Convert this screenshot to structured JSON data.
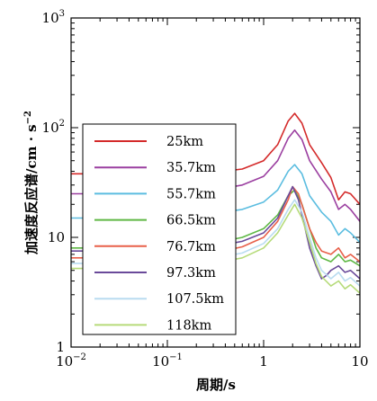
{
  "chart_data": {
    "type": "line",
    "xscale": "log",
    "yscale": "log",
    "xlim": [
      0.01,
      10
    ],
    "ylim": [
      1,
      1000
    ],
    "xlabel": "周期/s",
    "ylabel": "加速度反应谱/cm · s",
    "ylabel_exponent": "−2",
    "x_ticks": [
      {
        "base": "10",
        "exp": "−2"
      },
      {
        "base": "10",
        "exp": "−1"
      },
      {
        "base": "1",
        "exp": ""
      },
      {
        "base": "10",
        "exp": ""
      }
    ],
    "y_ticks": [
      {
        "base": "1",
        "exp": ""
      },
      {
        "base": "10",
        "exp": ""
      },
      {
        "base": "10",
        "exp": "2"
      },
      {
        "base": "10",
        "exp": "3"
      }
    ],
    "legend_position": "left-center",
    "series": [
      {
        "name": "25km",
        "color": "#d42a2a",
        "x": [
          0.01,
          0.03,
          0.1,
          0.3,
          0.6,
          1.0,
          1.4,
          1.8,
          2.1,
          2.5,
          3.0,
          4.0,
          5.0,
          6.0,
          7.0,
          8.0,
          10.0
        ],
        "y": [
          38,
          38,
          38,
          39,
          42,
          50,
          70,
          115,
          135,
          110,
          70,
          48,
          35,
          22,
          26,
          25,
          20
        ]
      },
      {
        "name": "35.7km",
        "color": "#9b3fa0",
        "x": [
          0.01,
          0.03,
          0.1,
          0.3,
          0.6,
          1.0,
          1.4,
          1.8,
          2.1,
          2.5,
          3.0,
          4.0,
          5.0,
          6.0,
          7.0,
          8.0,
          10.0
        ],
        "y": [
          25,
          25,
          25.5,
          27,
          30,
          36,
          50,
          80,
          95,
          78,
          50,
          34,
          26,
          18,
          20,
          18,
          14
        ]
      },
      {
        "name": "55.7km",
        "color": "#5bbde0",
        "x": [
          0.01,
          0.03,
          0.1,
          0.3,
          0.6,
          1.0,
          1.4,
          1.8,
          2.1,
          2.5,
          3.0,
          4.0,
          5.0,
          6.0,
          7.0,
          8.0,
          10.0
        ],
        "y": [
          15,
          15,
          15.5,
          16.5,
          18,
          21,
          27,
          40,
          46,
          38,
          24,
          17,
          14,
          10.5,
          12,
          11,
          9
        ]
      },
      {
        "name": "66.5km",
        "color": "#5fb845",
        "x": [
          0.01,
          0.03,
          0.1,
          0.3,
          0.6,
          1.0,
          1.4,
          1.8,
          2.1,
          2.5,
          3.0,
          3.5,
          4.0,
          5.0,
          6.0,
          7.0,
          8.0,
          10.0
        ],
        "y": [
          8,
          8,
          8.2,
          8.8,
          10,
          12,
          16,
          24,
          27,
          20,
          12,
          8,
          6.5,
          6,
          7,
          6,
          6.2,
          5.5
        ]
      },
      {
        "name": "76.7km",
        "color": "#e8604a",
        "x": [
          0.01,
          0.03,
          0.1,
          0.3,
          0.6,
          1.0,
          1.4,
          1.8,
          2.0,
          2.3,
          2.7,
          3.0,
          3.5,
          4.0,
          5.0,
          6.0,
          7.0,
          8.0,
          10.0
        ],
        "y": [
          6.5,
          6.5,
          6.7,
          7.2,
          8.2,
          10,
          14,
          22,
          29,
          25,
          16,
          12,
          9,
          7.5,
          7,
          8,
          6.5,
          7,
          6
        ]
      },
      {
        "name": "97.3km",
        "color": "#6a4a9a",
        "x": [
          0.01,
          0.03,
          0.1,
          0.3,
          0.6,
          1.0,
          1.4,
          1.8,
          2.0,
          2.3,
          2.7,
          3.0,
          3.5,
          4.0,
          4.5,
          5.0,
          6.0,
          7.0,
          8.0,
          10.0
        ],
        "y": [
          7.5,
          7.5,
          7.7,
          8.2,
          9.2,
          11,
          15,
          24,
          29,
          22,
          12,
          8,
          5.5,
          4.2,
          4.5,
          5,
          5.5,
          4.8,
          5,
          4.2
        ]
      },
      {
        "name": "107.5km",
        "color": "#b9dcf0",
        "x": [
          0.01,
          0.03,
          0.1,
          0.3,
          0.6,
          1.0,
          1.4,
          1.8,
          2.1,
          2.5,
          3.0,
          3.5,
          4.0,
          5.0,
          6.0,
          7.0,
          8.0,
          10.0
        ],
        "y": [
          5.8,
          5.8,
          6,
          6.4,
          7.2,
          8.8,
          12,
          18,
          22,
          17,
          10,
          6.5,
          5,
          4.2,
          4.8,
          4,
          4.3,
          3.6
        ]
      },
      {
        "name": "118km",
        "color": "#b6db7a",
        "x": [
          0.01,
          0.03,
          0.1,
          0.3,
          0.6,
          1.0,
          1.4,
          1.8,
          2.1,
          2.5,
          3.0,
          3.5,
          4.0,
          5.0,
          6.0,
          7.0,
          8.0,
          10.0
        ],
        "y": [
          5.2,
          5.2,
          5.4,
          5.8,
          6.5,
          8,
          11,
          16,
          20,
          15,
          9,
          5.8,
          4.4,
          3.6,
          4,
          3.4,
          3.7,
          3.1
        ]
      }
    ]
  }
}
